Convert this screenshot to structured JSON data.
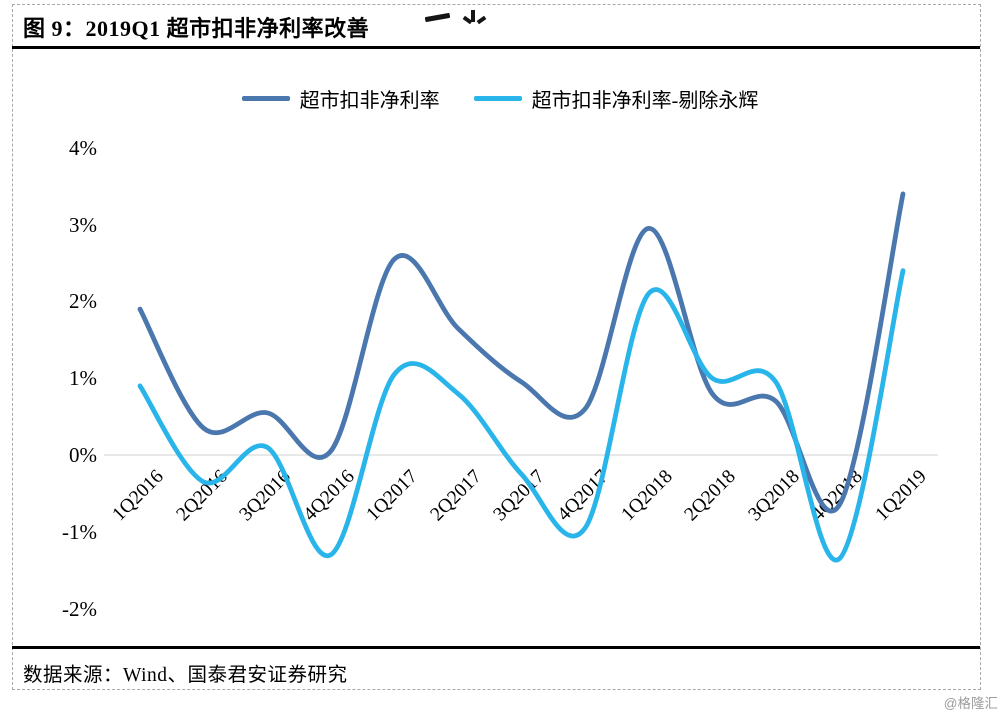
{
  "figure": {
    "title": "图 9：2019Q1 超市扣非净利率改善",
    "source": "数据来源：Wind、国泰君安证券研究",
    "watermark": "@格隆汇"
  },
  "chart_data": {
    "type": "line",
    "title": "图 9：2019Q1 超市扣非净利率改善",
    "xlabel": "",
    "ylabel": "",
    "smooth": true,
    "legend_position": "top-center",
    "categories": [
      "1Q2016",
      "2Q2016",
      "3Q2016",
      "4Q2016",
      "1Q2017",
      "2Q2017",
      "3Q2017",
      "4Q2017",
      "1Q2018",
      "2Q2018",
      "3Q2018",
      "4Q2018",
      "1Q2019"
    ],
    "series": [
      {
        "name": "超市扣非净利率",
        "color": "#4a77ad",
        "values": [
          1.9,
          0.35,
          0.55,
          0.05,
          2.55,
          1.65,
          0.95,
          0.6,
          2.95,
          0.8,
          0.7,
          -0.65,
          3.4
        ]
      },
      {
        "name": "超市扣非净利率-剔除永辉",
        "color": "#29b5ea",
        "values": [
          0.9,
          -0.35,
          0.1,
          -1.3,
          1.05,
          0.8,
          -0.25,
          -0.95,
          2.1,
          1.0,
          0.95,
          -1.35,
          2.4
        ]
      }
    ],
    "y_ticks": [
      "4%",
      "3%",
      "2%",
      "1%",
      "0%",
      "-1%",
      "-2%"
    ],
    "y_tick_values": [
      4,
      3,
      2,
      1,
      0,
      -1,
      -2
    ],
    "ylim": [
      -2,
      4
    ],
    "grid": "zero-axis-line-only",
    "zero_line_color": "#d9d9d9"
  }
}
